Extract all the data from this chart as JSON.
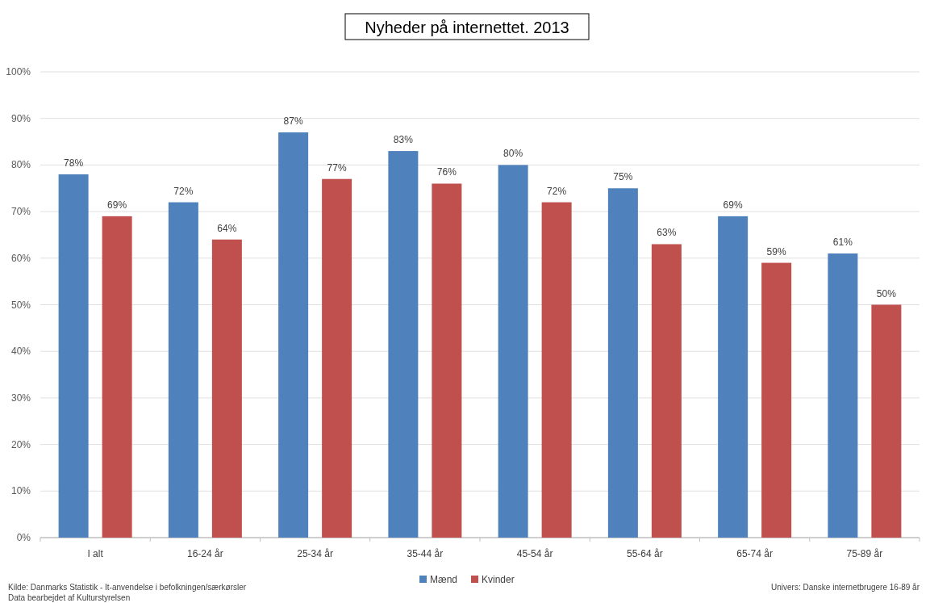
{
  "chart_data": {
    "type": "bar",
    "title": "Nyheder på internettet. 2013",
    "categories": [
      "I alt",
      "16-24 år",
      "25-34 år",
      "35-44 år",
      "45-54 år",
      "55-64 år",
      "65-74 år",
      "75-89 år"
    ],
    "series": [
      {
        "name": "Mænd",
        "color": "#4f81bd",
        "values": [
          78,
          72,
          87,
          83,
          80,
          75,
          69,
          61
        ],
        "value_labels": [
          "78%",
          "72%",
          "87%",
          "83%",
          "80%",
          "75%",
          "69%",
          "61%"
        ]
      },
      {
        "name": "Kvinder",
        "color": "#c0504d",
        "values": [
          69,
          64,
          77,
          76,
          72,
          63,
          59,
          50
        ],
        "value_labels": [
          "69%",
          "64%",
          "77%",
          "76%",
          "72%",
          "63%",
          "59%",
          "50%"
        ]
      }
    ],
    "ylim": [
      0,
      100
    ],
    "yticks": [
      {
        "value": 0,
        "label": "0%"
      },
      {
        "value": 10,
        "label": "10%"
      },
      {
        "value": 20,
        "label": "20%"
      },
      {
        "value": 30,
        "label": "30%"
      },
      {
        "value": 40,
        "label": "40%"
      },
      {
        "value": 50,
        "label": "50%"
      },
      {
        "value": 60,
        "label": "60%"
      },
      {
        "value": 70,
        "label": "70%"
      },
      {
        "value": 80,
        "label": "80%"
      },
      {
        "value": 90,
        "label": "90%"
      },
      {
        "value": 100,
        "label": "100%"
      }
    ],
    "grid": "y",
    "legend": "bottom",
    "annotations": [
      "Kilde: Danmarks Statistik - It-anvendelse i befolkningen/særkørsler",
      "Data bearbejdet af Kulturstyrelsen",
      "Univers: Danske internetbrugere 16-89 år"
    ]
  }
}
